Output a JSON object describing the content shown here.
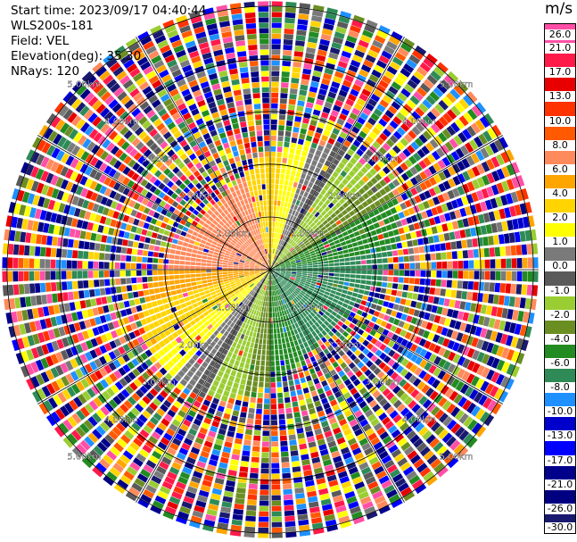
{
  "info": {
    "start_time": "Start time: 2023/09/17 04:40:44",
    "instrument": "WLS200s-181",
    "field": "Field: VEL",
    "elevation": "Elevation(deg): 35.30",
    "nrays": "NRays: 120"
  },
  "colorbar": {
    "unit": "m/s",
    "ticks": [
      "26.0",
      "21.0",
      "17.0",
      "13.0",
      "10.0",
      "8.0",
      "6.0",
      "4.0",
      "2.0",
      "1.0",
      "0.0",
      "-1.0",
      "-2.0",
      "-4.0",
      "-6.0",
      "-8.0",
      "-10.0",
      "-13.0",
      "-17.0",
      "-21.0",
      "-26.0",
      "-30.0"
    ],
    "colors": [
      "#ff4fa6",
      "#ff1a4a",
      "#e80000",
      "#ff3300",
      "#ff5a00",
      "#ff8a5c",
      "#ffa500",
      "#ffd400",
      "#ffff00",
      "#7a7a7a",
      "#5a5a5a",
      "#9acd32",
      "#6b8e23",
      "#228b22",
      "#2e8b57",
      "#1e90ff",
      "#0000cd",
      "#0000ff",
      "#00008b",
      "#000080",
      "#191970"
    ]
  },
  "chart_data": {
    "type": "heatmap",
    "title": "",
    "field": "VEL",
    "units": "m/s",
    "range_ring_labels": [
      "1.00km",
      "2.00km",
      "3.00km",
      "4.00km",
      "5.00km"
    ],
    "range_rings_km": [
      1,
      2,
      3,
      4,
      5
    ],
    "max_range_km": 5.1,
    "n_rays": 120,
    "n_gates": 50,
    "value_range": [
      -30,
      26
    ],
    "description_of_pattern": "coherent region within ~2.5 km: positive (orange/yellow) toward north-west and west, negative (green) toward south-east, noisy values beyond"
  }
}
